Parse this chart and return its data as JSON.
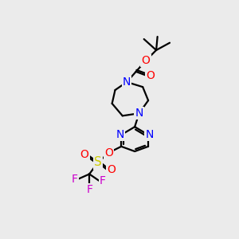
{
  "background_color": "#ebebeb",
  "bond_color": "#000000",
  "atom_colors": {
    "N": "#0000ff",
    "O": "#ff0000",
    "S": "#cccc00",
    "F": "#cc00cc",
    "C": "#000000"
  },
  "figsize": [
    3.0,
    3.0
  ],
  "dpi": 100
}
